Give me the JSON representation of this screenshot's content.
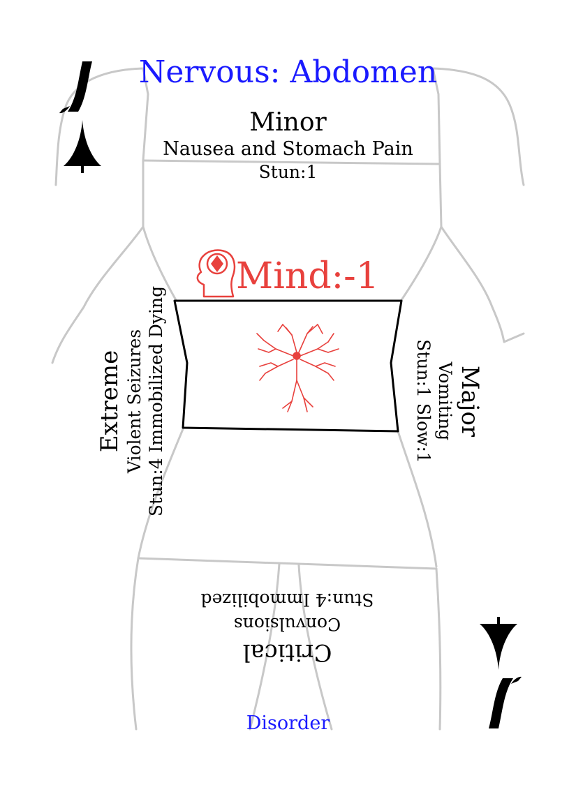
{
  "card": {
    "title": "Nervous: Abdomen",
    "minor": {
      "severity": "Minor",
      "effect": "Nausea and Stomach Pain",
      "stat": "Stun:1"
    },
    "extreme": {
      "severity": "Extreme",
      "effect": "Violent Seizures",
      "stat": "Stun:4 Immobilized Dying"
    },
    "major": {
      "severity": "Major",
      "effect": "Vomiting",
      "stat": "Stun:1 Slow:1"
    },
    "critical": {
      "severity": "Critical",
      "effect": "Convulsions",
      "stat": "Stun:4 Immobilized"
    },
    "mind_penalty": "Mind:-1",
    "footer": "Disorder",
    "icons": [
      "head-diamond-icon",
      "neuron-icon",
      "sword-icon",
      "body-outline"
    ],
    "colors": {
      "title": "#1a1aff",
      "mind": "#e8413d",
      "outline": "#c8c8c8",
      "neuron": "#e8413d"
    }
  }
}
